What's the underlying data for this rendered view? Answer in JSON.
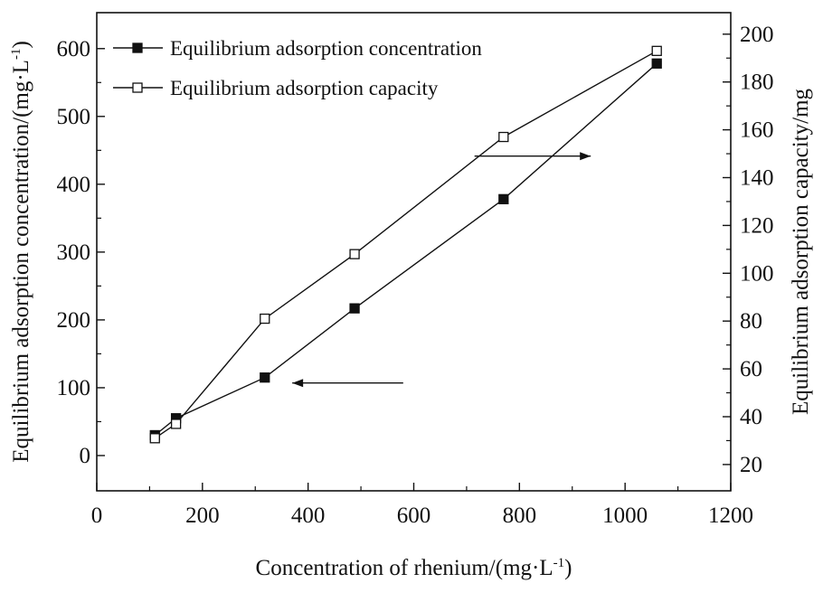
{
  "chart_data": {
    "type": "line",
    "x": [
      110,
      150,
      318,
      488,
      770,
      1060
    ],
    "series": [
      {
        "name": "Equilibrium adsorption concentration",
        "axis": "left",
        "marker": "filled-square",
        "values": [
          30,
          55,
          115,
          217,
          378,
          578
        ]
      },
      {
        "name": "Equilibrium adsorption capacity",
        "axis": "right",
        "marker": "open-square",
        "values": [
          31,
          37,
          81,
          108,
          157,
          193
        ]
      }
    ],
    "xlabel": {
      "main": "Concentration of rhenium/(mg·L",
      "sup": "-1",
      "close": ")"
    },
    "ylabel_left": {
      "main": "Equilibrium adsorption concentration/(mg·L",
      "sup": "-1",
      "close": ")"
    },
    "ylabel_right": "Equilibrium adsorption capacity/mg",
    "xlim": [
      0,
      1200
    ],
    "ylim_left": [
      -52,
      653
    ],
    "ylim_right": [
      9,
      209
    ],
    "xticks": [
      0,
      200,
      400,
      600,
      800,
      1000,
      1200
    ],
    "yticks_left": [
      0,
      100,
      200,
      300,
      400,
      500,
      600
    ],
    "yticks_right": [
      20,
      40,
      60,
      80,
      100,
      120,
      140,
      160,
      180,
      200
    ],
    "legend_position": "top-left",
    "grid": false,
    "annotations": [
      {
        "type": "arrow",
        "direction": "left",
        "meaning": "points to left axis for adsorption concentration",
        "from": [
          580,
          107
        ],
        "to": [
          370,
          107
        ]
      },
      {
        "type": "arrow",
        "direction": "right",
        "meaning": "points to right axis for adsorption capacity",
        "from": [
          715,
          149
        ],
        "to": [
          935,
          149
        ]
      }
    ]
  }
}
